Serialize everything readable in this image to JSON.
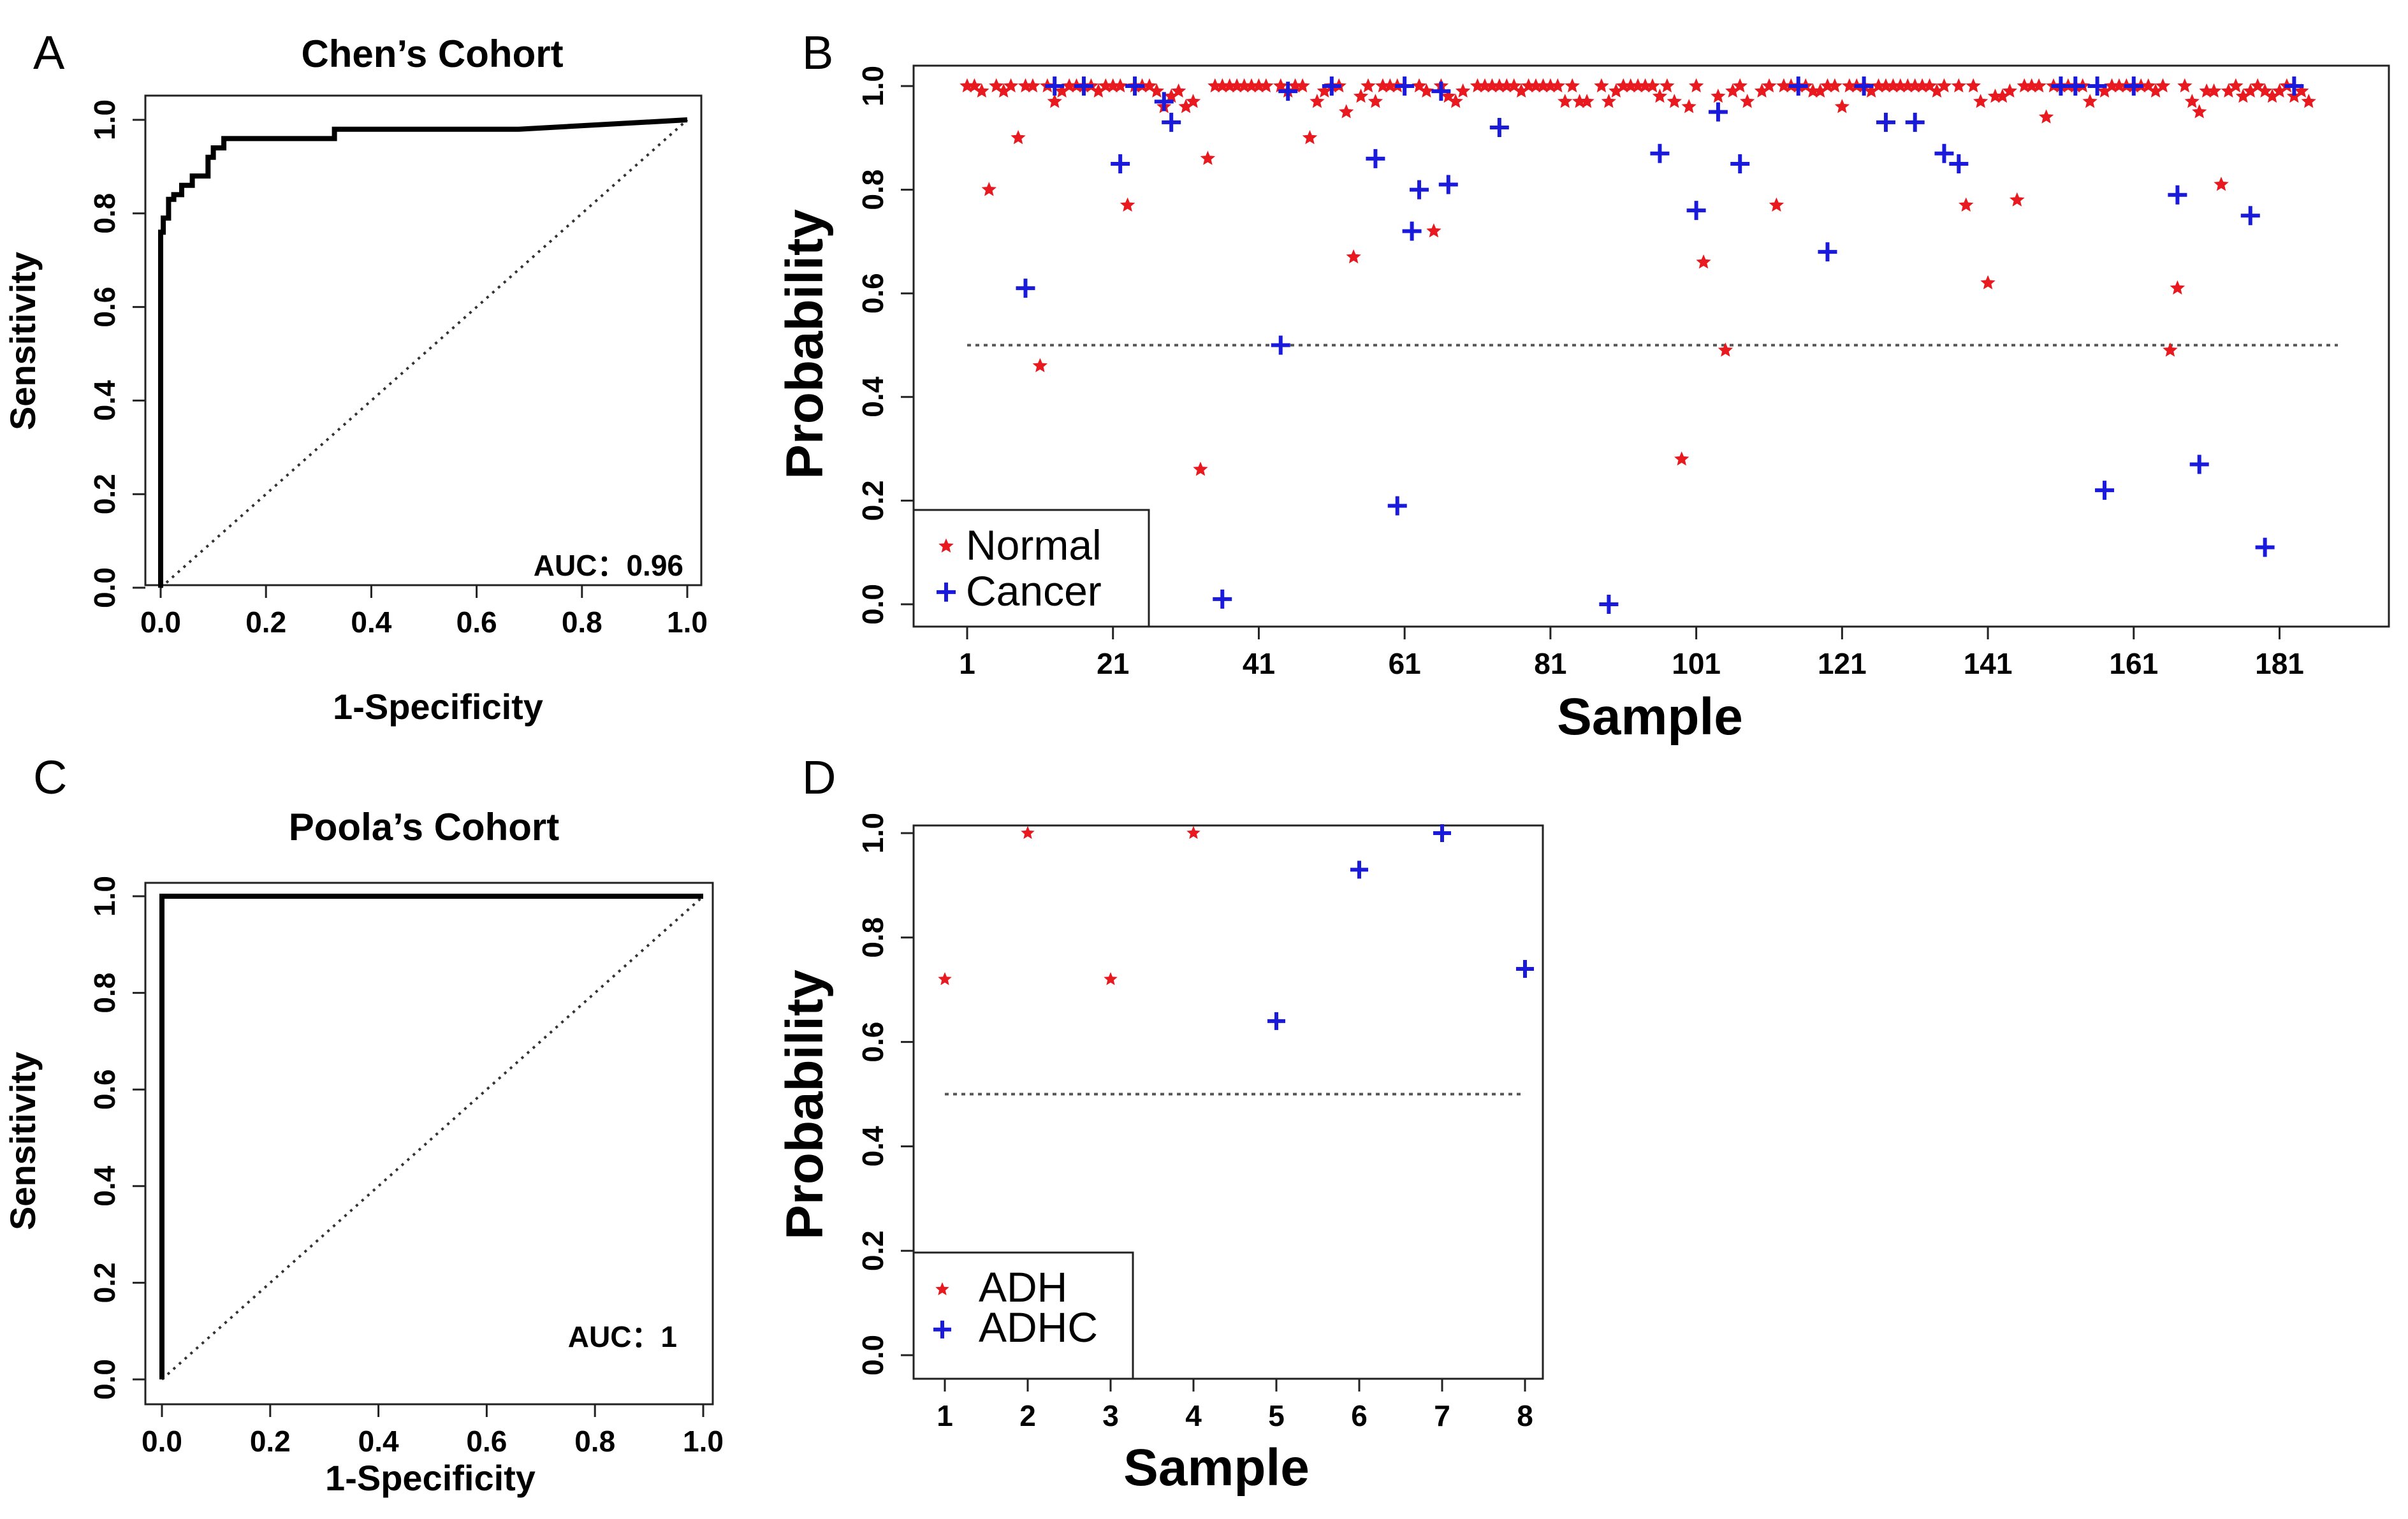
{
  "chart_data": [
    {
      "panel": "A",
      "type": "line",
      "title": "Chen’s Cohort",
      "xlabel": "1-Specificity",
      "ylabel": "Sensitivity",
      "xlim": [
        0,
        1
      ],
      "ylim": [
        0,
        1
      ],
      "xticks": [
        "0.0",
        "0.2",
        "0.4",
        "0.6",
        "0.8",
        "1.0"
      ],
      "yticks": [
        "0.0",
        "0.2",
        "0.4",
        "0.6",
        "0.8",
        "1.0"
      ],
      "annotation": "AUC：0.96",
      "grid": false,
      "roc_curve": {
        "x": [
          0,
          0,
          0.005,
          0.005,
          0.015,
          0.015,
          0.025,
          0.025,
          0.04,
          0.04,
          0.06,
          0.06,
          0.09,
          0.09,
          0.1,
          0.1,
          0.12,
          0.12,
          0.33,
          0.33,
          0.68,
          1.0
        ],
        "y": [
          0,
          0.76,
          0.76,
          0.79,
          0.79,
          0.83,
          0.83,
          0.84,
          0.84,
          0.86,
          0.86,
          0.88,
          0.88,
          0.92,
          0.92,
          0.94,
          0.94,
          0.96,
          0.96,
          0.98,
          0.98,
          1.0
        ]
      },
      "reference_line": {
        "x": [
          0,
          1
        ],
        "y": [
          0,
          1
        ]
      }
    },
    {
      "panel": "B",
      "type": "scatter",
      "xlabel": "Sample",
      "ylabel": "Probability",
      "xlim": [
        1,
        189
      ],
      "ylim": [
        0,
        1
      ],
      "xticks": [
        1,
        21,
        41,
        61,
        81,
        101,
        121,
        141,
        161,
        181
      ],
      "yticks": [
        "0.0",
        "0.2",
        "0.4",
        "0.6",
        "0.8",
        "1.0"
      ],
      "threshold": 0.5,
      "legend": {
        "position": "bottom-left",
        "entries": [
          "Normal",
          "Cancer"
        ]
      },
      "series": [
        {
          "name": "Normal",
          "color": "#e8191f",
          "marker": "star",
          "points": [
            [
              1,
              1.0
            ],
            [
              2,
              1.0
            ],
            [
              3,
              0.99
            ],
            [
              4,
              0.8
            ],
            [
              5,
              1.0
            ],
            [
              6,
              0.99
            ],
            [
              7,
              1.0
            ],
            [
              8,
              0.9
            ],
            [
              9,
              1.0
            ],
            [
              10,
              1.0
            ],
            [
              11,
              0.46
            ],
            [
              12,
              1.0
            ],
            [
              13,
              0.97
            ],
            [
              14,
              0.99
            ],
            [
              15,
              1.0
            ],
            [
              16,
              1.0
            ],
            [
              17,
              1.0
            ],
            [
              18,
              1.0
            ],
            [
              19,
              0.99
            ],
            [
              20,
              1.0
            ],
            [
              21,
              1.0
            ],
            [
              22,
              1.0
            ],
            [
              23,
              0.77
            ],
            [
              24,
              1.0
            ],
            [
              25,
              1.0
            ],
            [
              26,
              1.0
            ],
            [
              27,
              0.99
            ],
            [
              28,
              0.96
            ],
            [
              29,
              0.98
            ],
            [
              30,
              0.99
            ],
            [
              31,
              0.96
            ],
            [
              32,
              0.97
            ],
            [
              33,
              0.26
            ],
            [
              34,
              0.86
            ],
            [
              35,
              1.0
            ],
            [
              36,
              1.0
            ],
            [
              37,
              1.0
            ],
            [
              38,
              1.0
            ],
            [
              39,
              1.0
            ],
            [
              40,
              1.0
            ],
            [
              41,
              1.0
            ],
            [
              42,
              1.0
            ],
            [
              44,
              1.0
            ],
            [
              45,
              0.99
            ],
            [
              46,
              1.0
            ],
            [
              47,
              1.0
            ],
            [
              48,
              0.9
            ],
            [
              49,
              0.97
            ],
            [
              50,
              0.99
            ],
            [
              51,
              1.0
            ],
            [
              52,
              1.0
            ],
            [
              53,
              0.95
            ],
            [
              54,
              0.67
            ],
            [
              55,
              0.98
            ],
            [
              56,
              1.0
            ],
            [
              57,
              0.97
            ],
            [
              58,
              1.0
            ],
            [
              59,
              1.0
            ],
            [
              60,
              1.0
            ],
            [
              63,
              1.0
            ],
            [
              64,
              0.99
            ],
            [
              65,
              0.72
            ],
            [
              66,
              1.0
            ],
            [
              67,
              0.98
            ],
            [
              68,
              0.97
            ],
            [
              69,
              0.99
            ],
            [
              71,
              1.0
            ],
            [
              72,
              1.0
            ],
            [
              73,
              1.0
            ],
            [
              74,
              1.0
            ],
            [
              75,
              1.0
            ],
            [
              76,
              1.0
            ],
            [
              77,
              0.99
            ],
            [
              78,
              1.0
            ],
            [
              79,
              1.0
            ],
            [
              80,
              1.0
            ],
            [
              81,
              1.0
            ],
            [
              82,
              1.0
            ],
            [
              83,
              0.97
            ],
            [
              84,
              1.0
            ],
            [
              85,
              0.97
            ],
            [
              86,
              0.97
            ],
            [
              88,
              1.0
            ],
            [
              89,
              0.97
            ],
            [
              90,
              0.99
            ],
            [
              91,
              1.0
            ],
            [
              92,
              1.0
            ],
            [
              93,
              1.0
            ],
            [
              94,
              1.0
            ],
            [
              95,
              1.0
            ],
            [
              96,
              0.98
            ],
            [
              97,
              1.0
            ],
            [
              98,
              0.97
            ],
            [
              99,
              0.28
            ],
            [
              100,
              0.96
            ],
            [
              101,
              1.0
            ],
            [
              102,
              0.66
            ],
            [
              104,
              0.98
            ],
            [
              105,
              0.49
            ],
            [
              106,
              0.99
            ],
            [
              107,
              1.0
            ],
            [
              108,
              0.97
            ],
            [
              110,
              0.99
            ],
            [
              111,
              1.0
            ],
            [
              112,
              0.77
            ],
            [
              113,
              1.0
            ],
            [
              114,
              1.0
            ],
            [
              115,
              1.0
            ],
            [
              116,
              1.0
            ],
            [
              117,
              0.99
            ],
            [
              118,
              0.99
            ],
            [
              119,
              1.0
            ],
            [
              120,
              1.0
            ],
            [
              121,
              0.96
            ],
            [
              122,
              1.0
            ],
            [
              123,
              1.0
            ],
            [
              124,
              1.0
            ],
            [
              125,
              0.99
            ],
            [
              126,
              1.0
            ],
            [
              127,
              1.0
            ],
            [
              128,
              1.0
            ],
            [
              129,
              1.0
            ],
            [
              130,
              1.0
            ],
            [
              131,
              1.0
            ],
            [
              132,
              1.0
            ],
            [
              133,
              1.0
            ],
            [
              134,
              0.99
            ],
            [
              135,
              1.0
            ],
            [
              137,
              1.0
            ],
            [
              138,
              0.77
            ],
            [
              139,
              1.0
            ],
            [
              140,
              0.97
            ],
            [
              141,
              0.62
            ],
            [
              142,
              0.98
            ],
            [
              143,
              0.98
            ],
            [
              144,
              0.99
            ],
            [
              145,
              0.78
            ],
            [
              146,
              1.0
            ],
            [
              147,
              1.0
            ],
            [
              148,
              1.0
            ],
            [
              149,
              0.94
            ],
            [
              150,
              1.0
            ],
            [
              151,
              1.0
            ],
            [
              152,
              1.0
            ],
            [
              153,
              1.0
            ],
            [
              154,
              1.0
            ],
            [
              155,
              0.97
            ],
            [
              157,
              0.99
            ],
            [
              158,
              1.0
            ],
            [
              159,
              1.0
            ],
            [
              160,
              1.0
            ],
            [
              161,
              1.0
            ],
            [
              162,
              1.0
            ],
            [
              163,
              1.0
            ],
            [
              164,
              0.99
            ],
            [
              165,
              1.0
            ],
            [
              166,
              0.49
            ],
            [
              167,
              0.61
            ],
            [
              168,
              1.0
            ],
            [
              169,
              0.97
            ],
            [
              170,
              0.95
            ],
            [
              171,
              0.99
            ],
            [
              172,
              0.99
            ],
            [
              173,
              0.81
            ],
            [
              174,
              0.99
            ],
            [
              175,
              1.0
            ],
            [
              176,
              0.98
            ],
            [
              177,
              0.99
            ],
            [
              178,
              1.0
            ],
            [
              179,
              0.99
            ],
            [
              180,
              0.98
            ],
            [
              181,
              0.99
            ],
            [
              182,
              1.0
            ],
            [
              183,
              0.98
            ],
            [
              184,
              0.99
            ],
            [
              185,
              0.97
            ]
          ]
        },
        {
          "name": "Cancer",
          "color": "#1a1adb",
          "marker": "plus",
          "points": [
            [
              9,
              0.61
            ],
            [
              13,
              1.0
            ],
            [
              17,
              1.0
            ],
            [
              22,
              0.85
            ],
            [
              24,
              1.0
            ],
            [
              28,
              0.97
            ],
            [
              29,
              0.93
            ],
            [
              36,
              0.01
            ],
            [
              44,
              0.5
            ],
            [
              45,
              0.99
            ],
            [
              51,
              1.0
            ],
            [
              57,
              0.86
            ],
            [
              60,
              0.19
            ],
            [
              61,
              1.0
            ],
            [
              62,
              0.72
            ],
            [
              63,
              0.8
            ],
            [
              66,
              0.99
            ],
            [
              67,
              0.81
            ],
            [
              74,
              0.92
            ],
            [
              89,
              0.0
            ],
            [
              96,
              0.87
            ],
            [
              101,
              0.76
            ],
            [
              104,
              0.95
            ],
            [
              107,
              0.85
            ],
            [
              115,
              1.0
            ],
            [
              119,
              0.68
            ],
            [
              124,
              1.0
            ],
            [
              127,
              0.93
            ],
            [
              131,
              0.93
            ],
            [
              135,
              0.87
            ],
            [
              137,
              0.85
            ],
            [
              151,
              1.0
            ],
            [
              153,
              1.0
            ],
            [
              156,
              1.0
            ],
            [
              157,
              0.22
            ],
            [
              161,
              1.0
            ],
            [
              167,
              0.79
            ],
            [
              170,
              0.27
            ],
            [
              177,
              0.75
            ],
            [
              179,
              0.11
            ],
            [
              183,
              1.0
            ]
          ]
        }
      ]
    },
    {
      "panel": "C",
      "type": "line",
      "title": "Poola’s Cohort",
      "xlabel": "1-Specificity",
      "ylabel": "Sensitivity",
      "xlim": [
        0,
        1
      ],
      "ylim": [
        0,
        1
      ],
      "xticks": [
        "0.0",
        "0.2",
        "0.4",
        "0.6",
        "0.8",
        "1.0"
      ],
      "yticks": [
        "0.0",
        "0.2",
        "0.4",
        "0.6",
        "0.8",
        "1.0"
      ],
      "annotation": "AUC：1",
      "grid": false,
      "roc_curve": {
        "x": [
          0,
          0,
          1
        ],
        "y": [
          0,
          1,
          1
        ]
      },
      "reference_line": {
        "x": [
          0,
          1
        ],
        "y": [
          0,
          1
        ]
      }
    },
    {
      "panel": "D",
      "type": "scatter",
      "xlabel": "Sample",
      "ylabel": "Probability",
      "xlim": [
        1,
        8
      ],
      "ylim": [
        0,
        1
      ],
      "xticks": [
        1,
        2,
        3,
        4,
        5,
        6,
        7,
        8
      ],
      "yticks": [
        "0.0",
        "0.2",
        "0.4",
        "0.6",
        "0.8",
        "1.0"
      ],
      "threshold": 0.5,
      "legend": {
        "position": "bottom-left",
        "entries": [
          "ADH",
          "ADHC"
        ]
      },
      "series": [
        {
          "name": "ADH",
          "color": "#e8191f",
          "marker": "star",
          "points": [
            [
              1,
              0.72
            ],
            [
              2,
              1.0
            ],
            [
              3,
              0.72
            ],
            [
              4,
              1.0
            ]
          ]
        },
        {
          "name": "ADHC",
          "color": "#1a1adb",
          "marker": "plus",
          "points": [
            [
              5,
              0.64
            ],
            [
              6,
              0.93
            ],
            [
              7,
              1.0
            ],
            [
              8,
              0.74
            ]
          ]
        }
      ]
    }
  ]
}
